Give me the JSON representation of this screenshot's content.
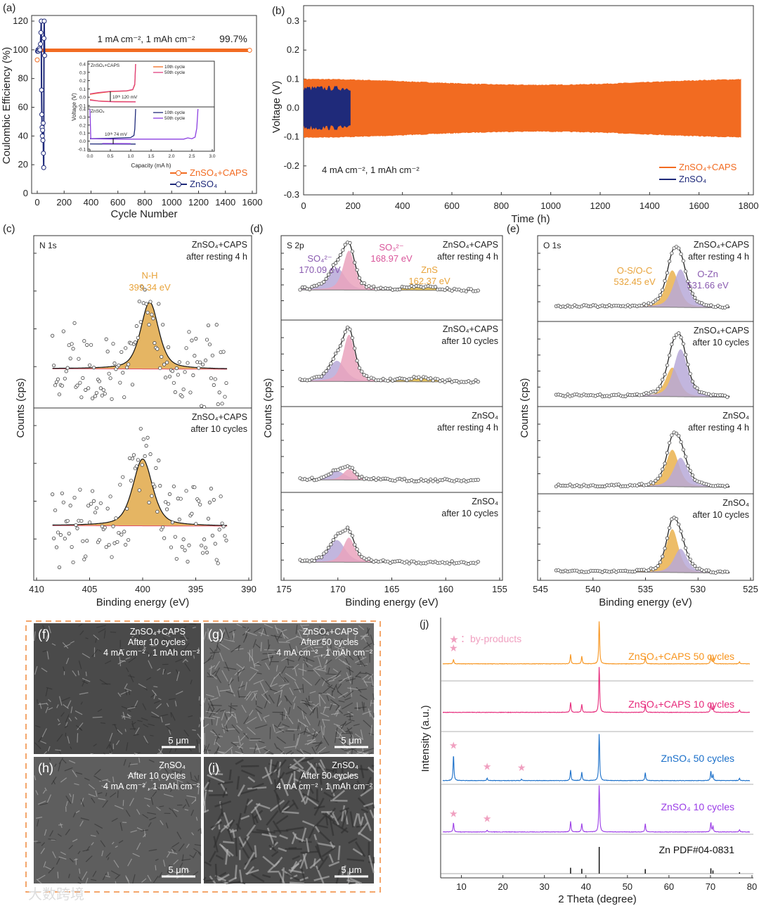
{
  "figure": {
    "watermark": "大数跨境"
  },
  "chart_data": [
    {
      "id": "a",
      "type": "scatter",
      "label": "(a)",
      "xlabel": "Cycle Number",
      "ylabel": "Coulombic Efficiency (%)",
      "xlim": [
        0,
        1600
      ],
      "ylim": [
        0,
        120
      ],
      "xticks": [
        0,
        200,
        400,
        600,
        800,
        1000,
        1200,
        1400,
        1600
      ],
      "yticks": [
        0,
        20,
        40,
        60,
        80,
        100,
        120
      ],
      "condition": "1 mA cm⁻², 1 mAh cm⁻²",
      "ce_label": "99.7%",
      "series": [
        {
          "name": "ZnSO₄+CAPS",
          "color": "#f26b21",
          "ce": 99.7,
          "last_cycle": 1580
        },
        {
          "name": "ZnSO₄",
          "color": "#1f2a7a",
          "points": [
            [
              2,
              99
            ],
            [
              5,
              100
            ],
            [
              8,
              99
            ],
            [
              12,
              100
            ],
            [
              16,
              101
            ],
            [
              20,
              100
            ],
            [
              24,
              104
            ],
            [
              27,
              112
            ],
            [
              30,
              120
            ],
            [
              32,
              72
            ],
            [
              34,
              55
            ],
            [
              36,
              46
            ],
            [
              38,
              40
            ],
            [
              40,
              44
            ],
            [
              42,
              37
            ],
            [
              44,
              49
            ],
            [
              46,
              28
            ],
            [
              48,
              18
            ],
            [
              50,
              108
            ],
            [
              52,
              120
            ],
            [
              55,
              96
            ]
          ]
        }
      ],
      "inset": {
        "xlabel": "Capacity (mA h)",
        "ylabel": "Voltage (V)",
        "xlim": [
          0,
          3
        ],
        "ylim": [
          -0.1,
          0.4
        ],
        "xticks": [
          0,
          0.5,
          1,
          1.5,
          2,
          2.5,
          3
        ],
        "yticks": [
          -0.1,
          0,
          0.1,
          0.2,
          0.3,
          0.4
        ],
        "top": {
          "title": "ZnSO₄+CAPS",
          "annotation": "10ᵗʰ 120 mV",
          "series": [
            {
              "name": "10th cycle",
              "color": "#f26b21",
              "charge": [
                [
                  0,
                  0.035
                ],
                [
                  0.2,
                  0.05
                ],
                [
                  0.5,
                  0.068
                ],
                [
                  0.9,
                  0.075
                ],
                [
                  1.05,
                  0.09
                ],
                [
                  1.1,
                  0.15
                ],
                [
                  1.12,
                  0.4
                ]
              ],
              "discharge": [
                [
                  0,
                  -0.03
                ],
                [
                  0.2,
                  -0.045
                ],
                [
                  0.5,
                  -0.052
                ],
                [
                  1.12,
                  -0.055
                ]
              ]
            },
            {
              "name": "50th cycle",
              "color": "#e0417f",
              "charge": [
                [
                  0,
                  0.04
                ],
                [
                  0.2,
                  0.055
                ],
                [
                  0.5,
                  0.07
                ],
                [
                  0.9,
                  0.077
                ],
                [
                  1.05,
                  0.092
                ],
                [
                  1.1,
                  0.16
                ],
                [
                  1.12,
                  0.4
                ]
              ],
              "discharge": [
                [
                  0,
                  -0.035
                ],
                [
                  0.3,
                  -0.05
                ],
                [
                  0.6,
                  -0.055
                ],
                [
                  1.12,
                  -0.056
                ]
              ]
            }
          ]
        },
        "bottom": {
          "title": "ZnSO₄",
          "annotation": "10ᵗʰ 74 mV",
          "series": [
            {
              "name": "10th cycle",
              "color": "#1f2a7a",
              "charge": [
                [
                  0,
                  0.03
                ],
                [
                  0.5,
                  0.035
                ],
                [
                  1.0,
                  0.045
                ],
                [
                  1.08,
                  0.07
                ],
                [
                  1.1,
                  0.15
                ],
                [
                  1.12,
                  0.4
                ]
              ],
              "discharge": [
                [
                  0,
                  -0.035
                ],
                [
                  0.5,
                  -0.036
                ],
                [
                  1.12,
                  -0.037
                ]
              ]
            },
            {
              "name": "50th cycle",
              "color": "#8b3fe0",
              "charge": [
                [
                  0,
                  0.4
                ],
                [
                  0.02,
                  0.03
                ],
                [
                  0.7,
                  0.025
                ],
                [
                  1.5,
                  0.025
                ],
                [
                  2.3,
                  0.025
                ],
                [
                  2.4,
                  0.04
                ],
                [
                  2.5,
                  0.03
                ],
                [
                  2.58,
                  0.05
                ],
                [
                  2.62,
                  0.16
                ],
                [
                  2.65,
                  0.4
                ]
              ],
              "discharge": [
                [
                  0.3,
                  -0.03
                ],
                [
                  1.0,
                  -0.032
                ]
              ]
            }
          ]
        }
      }
    },
    {
      "id": "b",
      "type": "line",
      "label": "(b)",
      "xlabel": "Time (h)",
      "ylabel": "Voltage (V)",
      "xlim": [
        0,
        1800
      ],
      "ylim": [
        -0.3,
        0.3
      ],
      "xticks": [
        0,
        200,
        400,
        600,
        800,
        1000,
        1200,
        1400,
        1600,
        1800
      ],
      "yticks": [
        -0.3,
        -0.2,
        -0.1,
        0,
        0.1,
        0.2,
        0.3
      ],
      "condition": "4 mA cm⁻², 1 mAh cm⁻²",
      "series": [
        {
          "name": "ZnSO₄+CAPS",
          "color": "#f26b21",
          "t_end": 1770,
          "amplitude_V": 0.1
        },
        {
          "name": "ZnSO₄",
          "color": "#1f2a7a",
          "t_end": 190,
          "amplitude_V": 0.07
        }
      ]
    },
    {
      "id": "c",
      "type": "xps",
      "label": "(c)",
      "region": "N 1s",
      "xlabel": "Binding energy (eV)",
      "ylabel": "Counts (cps)",
      "xlim": [
        410,
        390
      ],
      "xticks": [
        410,
        405,
        400,
        395,
        390
      ],
      "subplots": [
        {
          "title": "ZnSO₄+CAPS",
          "subtitle": "after resting 4 h",
          "peaks": [
            {
              "name": "N-H",
              "center": 399.34,
              "label": "399.34 eV",
              "amp": 1,
              "width": 1.0,
              "color": "#e0a848"
            }
          ]
        },
        {
          "title": "ZnSO₄+CAPS",
          "subtitle": "after 10 cycles",
          "peaks": [
            {
              "name": "N-H",
              "center": 400.0,
              "amp": 1,
              "width": 1.1,
              "color": "#e0a848"
            }
          ]
        }
      ]
    },
    {
      "id": "d",
      "type": "xps",
      "label": "(d)",
      "region": "S 2p",
      "xlabel": "Binding energy (eV)",
      "ylabel": "Counts (cps)",
      "xlim": [
        175,
        155
      ],
      "xticks": [
        175,
        170,
        165,
        160,
        155
      ],
      "peak_labels": [
        {
          "name": "SO₄²⁻",
          "label": "170.09 eV",
          "color": "#8a5bb0"
        },
        {
          "name": "SO₃²⁻",
          "label": "168.97 eV",
          "color": "#d9559a"
        },
        {
          "name": "ZnS",
          "label": "162.37 eV",
          "color": "#e8a33a"
        }
      ],
      "subplots": [
        {
          "title": "ZnSO₄+CAPS",
          "subtitle": "after resting 4 h",
          "peaks": [
            {
              "center": 170.09,
              "amp": 0.45,
              "width": 0.9
            },
            {
              "center": 168.97,
              "amp": 0.8,
              "width": 0.65
            },
            {
              "center": 162.37,
              "amp": 0.07,
              "width": 1.6
            }
          ]
        },
        {
          "title": "ZnSO₄+CAPS",
          "subtitle": "after 10 cycles",
          "peaks": [
            {
              "center": 170.09,
              "amp": 0.42,
              "width": 0.9
            },
            {
              "center": 168.97,
              "amp": 0.95,
              "width": 0.65
            },
            {
              "center": 162.37,
              "amp": 0.07,
              "width": 1.6
            }
          ]
        },
        {
          "title": "ZnSO₄",
          "subtitle": "after resting 4 h",
          "peaks": [
            {
              "center": 170.09,
              "amp": 0.18,
              "width": 0.9
            },
            {
              "center": 168.97,
              "amp": 0.22,
              "width": 0.65
            }
          ]
        },
        {
          "title": "ZnSO₄",
          "subtitle": "after 10 cycles",
          "peaks": [
            {
              "center": 170.09,
              "amp": 0.45,
              "width": 0.9
            },
            {
              "center": 168.97,
              "amp": 0.5,
              "width": 0.65
            }
          ]
        }
      ]
    },
    {
      "id": "e",
      "type": "xps",
      "label": "(e)",
      "region": "O 1s",
      "xlabel": "Binding energy (eV)",
      "ylabel": "Counts (cps)",
      "xlim": [
        545,
        525
      ],
      "xticks": [
        545,
        540,
        535,
        530,
        525
      ],
      "peak_labels": [
        {
          "name": "O-S/O-C",
          "label": "532.45 eV",
          "color": "#e8a33a"
        },
        {
          "name": "O-Zn",
          "label": "531.66 eV",
          "color": "#8a5bb0"
        }
      ],
      "subplots": [
        {
          "title": "ZnSO₄+CAPS",
          "subtitle": "after resting 4 h",
          "peaks": [
            {
              "center": 532.45,
              "amp": 0.7,
              "width": 0.75
            },
            {
              "center": 531.66,
              "amp": 0.72,
              "width": 0.8
            }
          ]
        },
        {
          "title": "ZnSO₄+CAPS",
          "subtitle": "after 10 cycles",
          "peaks": [
            {
              "center": 532.45,
              "amp": 0.55,
              "width": 0.75
            },
            {
              "center": 531.66,
              "amp": 0.9,
              "width": 0.8
            }
          ]
        },
        {
          "title": "ZnSO₄",
          "subtitle": "after resting 4 h",
          "peaks": [
            {
              "center": 532.45,
              "amp": 0.7,
              "width": 0.75
            },
            {
              "center": 531.66,
              "amp": 0.55,
              "width": 0.8
            }
          ]
        },
        {
          "title": "ZnSO₄",
          "subtitle": "after 10 cycles",
          "peaks": [
            {
              "center": 532.45,
              "amp": 0.82,
              "width": 0.7
            },
            {
              "center": 531.66,
              "amp": 0.45,
              "width": 0.75
            }
          ]
        }
      ]
    },
    {
      "id": "j",
      "type": "line",
      "label": "(j)",
      "xlabel": "2 Theta (degree)",
      "ylabel": "Intensity (a.u.)",
      "xlim": [
        5,
        80
      ],
      "xticks": [
        10,
        20,
        30,
        40,
        50,
        60,
        70,
        80
      ],
      "legend": {
        "marker": "★",
        "text": "：by-products",
        "color": "#f0a0c0"
      },
      "zn_peaks": [
        [
          36.3,
          0.22
        ],
        [
          39.0,
          0.18
        ],
        [
          43.2,
          1
        ],
        [
          54.3,
          0.17
        ],
        [
          70.1,
          0.2
        ],
        [
          70.6,
          0.12
        ],
        [
          77.0,
          0.05
        ]
      ],
      "series": [
        {
          "name": "ZnSO₄+CAPS 50 cycles",
          "color": "#f7941d",
          "byproducts": [
            [
              8.1,
              0.1
            ]
          ]
        },
        {
          "name": "ZnSO₄+CAPS 10 cycles",
          "color": "#e6287a",
          "byproducts": []
        },
        {
          "name": "ZnSO₄ 50 cycles",
          "color": "#1a6fc9",
          "byproducts": [
            [
              8.1,
              0.55
            ],
            [
              16.2,
              0.05
            ],
            [
              24.5,
              0.03
            ]
          ]
        },
        {
          "name": "ZnSO₄ 10 cycles",
          "color": "#9b3de6",
          "byproducts": [
            [
              8.1,
              0.2
            ],
            [
              16.2,
              0.04
            ]
          ]
        }
      ],
      "reference": {
        "name": "Zn PDF#04-0831",
        "color": "#111111"
      }
    }
  ],
  "sem": {
    "images": [
      {
        "label": "(f)",
        "lines": [
          "ZnSO₄+CAPS",
          "After 10 cycles",
          "4 mA cm⁻² , 1 mAh cm⁻²"
        ],
        "scale": "5 μm"
      },
      {
        "label": "(g)",
        "lines": [
          "ZnSO₄+CAPS",
          "After 50 cycles",
          "4 mA cm⁻² , 1 mAh cm⁻²"
        ],
        "scale": "5 μm"
      },
      {
        "label": "(h)",
        "lines": [
          "ZnSO₄",
          "After 10 cycles",
          "4 mA cm⁻² , 1 mAh cm⁻²"
        ],
        "scale": "5 μm"
      },
      {
        "label": "(i)",
        "lines": [
          "ZnSO₄",
          "After 50 cycles",
          "4 mA cm⁻² , 1 mAh cm⁻²"
        ],
        "scale": "5 μm"
      }
    ]
  }
}
